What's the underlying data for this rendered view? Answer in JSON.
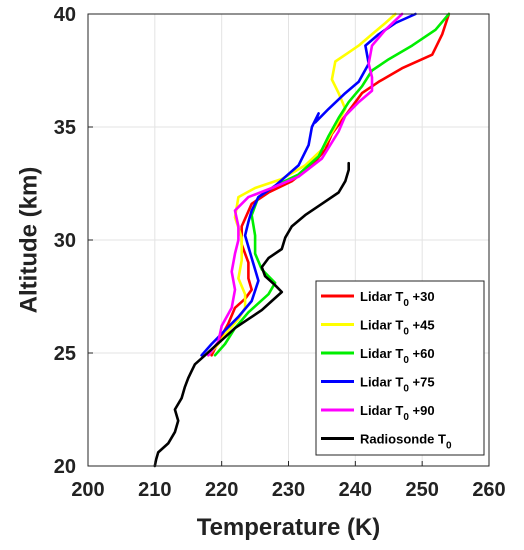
{
  "chart_data": {
    "type": "line",
    "title": "",
    "xlabel": "Temperature (K)",
    "ylabel": "Altitude (km)",
    "xlim": [
      200,
      260
    ],
    "ylim": [
      20,
      40
    ],
    "xticks": [
      "200",
      "210",
      "220",
      "230",
      "240",
      "250",
      "260"
    ],
    "yticks": [
      "20",
      "25",
      "30",
      "35",
      "40"
    ],
    "grid": true,
    "legend_position": "bottom-right",
    "series": [
      {
        "name": "Lidar T₀ +30",
        "legend_base": "Lidar T",
        "legend_sub": "0",
        "legend_suffix": " +30",
        "color": "#ff0000",
        "x": [
          218.5,
          219.5,
          221.0,
          222.0,
          223.5,
          224.5,
          224.0,
          224.0,
          223.0,
          223.0,
          224.5,
          227.0,
          230.5,
          233.5,
          235.5,
          236.5,
          238.0,
          239.5,
          241.0,
          243.5,
          247.0,
          251.5,
          253.0,
          254.0
        ],
        "y": [
          24.9,
          25.5,
          26.3,
          27.0,
          27.4,
          27.8,
          28.3,
          29.0,
          29.8,
          30.6,
          31.6,
          32.1,
          32.6,
          33.3,
          34.0,
          34.7,
          35.3,
          35.9,
          36.5,
          37.0,
          37.6,
          38.2,
          39.1,
          40.0
        ]
      },
      {
        "name": "Lidar T₀ +45",
        "legend_base": "Lidar T",
        "legend_sub": "0",
        "legend_suffix": " +45",
        "color": "#ffff00",
        "x": [
          218.0,
          219.5,
          221.0,
          222.5,
          223.5,
          223.5,
          222.5,
          223.0,
          223.0,
          222.0,
          222.5,
          225.0,
          229.0,
          232.5,
          235.0,
          237.0,
          238.5,
          237.5,
          236.5,
          237.0,
          239.0,
          240.5,
          242.5,
          244.5,
          246.0
        ],
        "y": [
          24.9,
          25.4,
          26.0,
          26.5,
          27.0,
          27.6,
          28.3,
          29.1,
          30.1,
          31.0,
          31.9,
          32.3,
          32.7,
          33.3,
          34.0,
          35.0,
          35.8,
          36.5,
          37.1,
          37.9,
          38.3,
          38.6,
          39.1,
          39.6,
          40.0
        ]
      },
      {
        "name": "Lidar T₀ +60",
        "legend_base": "Lidar T",
        "legend_sub": "0",
        "legend_suffix": " +60",
        "color": "#00ee00",
        "x": [
          219.0,
          220.5,
          222.0,
          224.0,
          227.0,
          228.0,
          226.0,
          225.0,
          225.0,
          224.5,
          225.5,
          228.0,
          231.5,
          234.5,
          236.0,
          237.5,
          239.0,
          241.0,
          242.5,
          245.0,
          248.5,
          252.0,
          254.0
        ],
        "y": [
          24.9,
          25.4,
          26.1,
          26.8,
          27.6,
          28.1,
          28.7,
          29.4,
          30.2,
          31.1,
          31.9,
          32.4,
          32.9,
          33.7,
          34.6,
          35.4,
          36.1,
          36.8,
          37.5,
          38.0,
          38.6,
          39.3,
          40.0
        ]
      },
      {
        "name": "Lidar T₀ +75",
        "legend_base": "Lidar T",
        "legend_sub": "0",
        "legend_suffix": " +75",
        "color": "#0000ff",
        "x": [
          217.0,
          218.5,
          220.5,
          222.5,
          224.5,
          225.5,
          224.5,
          223.5,
          224.0,
          224.5,
          225.5,
          228.0,
          231.5,
          233.0,
          233.5,
          234.5,
          234.0,
          236.0,
          238.5,
          240.5,
          242.0,
          241.5,
          243.5,
          246.0,
          249.0
        ],
        "y": [
          24.9,
          25.4,
          26.0,
          26.6,
          27.3,
          28.2,
          29.2,
          30.2,
          30.8,
          31.3,
          31.9,
          32.4,
          33.3,
          34.2,
          35.0,
          35.6,
          35.2,
          35.8,
          36.5,
          37.0,
          37.8,
          38.6,
          39.1,
          39.6,
          40.0
        ]
      },
      {
        "name": "Lidar T₀ +90",
        "legend_base": "Lidar T",
        "legend_sub": "0",
        "legend_suffix": " +90",
        "color": "#ff00ff",
        "x": [
          218.0,
          219.5,
          220.0,
          221.5,
          222.0,
          221.5,
          222.0,
          222.5,
          222.5,
          222.0,
          224.0,
          227.5,
          231.5,
          235.0,
          237.5,
          238.5,
          240.5,
          242.5,
          242.5,
          242.0,
          242.5,
          244.5,
          247.0
        ],
        "y": [
          24.9,
          25.5,
          26.2,
          27.0,
          27.8,
          28.6,
          29.4,
          30.0,
          30.6,
          31.3,
          31.9,
          32.3,
          32.8,
          33.6,
          34.8,
          35.5,
          36.1,
          36.6,
          37.2,
          37.8,
          38.6,
          39.3,
          40.0
        ]
      },
      {
        "name": "Radiosonde T₀",
        "legend_base": "Radiosonde T",
        "legend_sub": "0",
        "legend_suffix": "",
        "color": "#000000",
        "x": [
          210.0,
          210.2,
          210.5,
          212.0,
          213.0,
          213.5,
          213.0,
          214.0,
          214.5,
          215.0,
          215.5,
          216.0,
          217.5,
          219.0,
          220.5,
          222.0,
          224.0,
          226.0,
          227.5,
          229.0,
          228.0,
          226.5,
          226.0,
          227.0,
          229.0,
          229.5,
          230.5,
          232.5,
          235.0,
          237.5,
          238.5,
          239.0,
          239.0
        ],
        "y": [
          20.0,
          20.3,
          20.6,
          21.0,
          21.5,
          22.0,
          22.5,
          23.0,
          23.5,
          23.9,
          24.2,
          24.5,
          24.9,
          25.3,
          25.7,
          26.1,
          26.5,
          26.9,
          27.3,
          27.7,
          28.0,
          28.4,
          28.8,
          29.2,
          29.6,
          30.1,
          30.6,
          31.1,
          31.6,
          32.1,
          32.6,
          33.1,
          33.4
        ]
      }
    ]
  }
}
